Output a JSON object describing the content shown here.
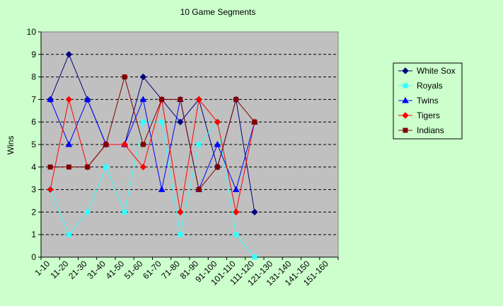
{
  "chart_data": {
    "type": "line",
    "title": "10 Game Segments",
    "xlabel": "",
    "ylabel": "Wins",
    "ylim": [
      0,
      10
    ],
    "yticks": [
      0,
      1,
      2,
      3,
      4,
      5,
      6,
      7,
      8,
      9,
      10
    ],
    "grid": "horizontal dashed",
    "legend_position": "right",
    "categories": [
      "1-10",
      "11-20",
      "21-30",
      "31-40",
      "41-50",
      "51-60",
      "61-70",
      "71-80",
      "81-90",
      "91-100",
      "101-110",
      "111-120",
      "121-130",
      "131-140",
      "141-150",
      "151-160"
    ],
    "series": [
      {
        "name": "White Sox",
        "color": "#000080",
        "marker": "diamond",
        "values": [
          7,
          9,
          7,
          5,
          5,
          8,
          7,
          6,
          7,
          4,
          7,
          2,
          null,
          null,
          null,
          null
        ]
      },
      {
        "name": "Royals",
        "color": "#33FFFF",
        "marker": "square",
        "values": [
          3,
          1,
          2,
          4,
          2,
          6,
          6,
          1,
          5,
          6,
          1,
          0,
          null,
          null,
          null,
          null
        ]
      },
      {
        "name": "Twins",
        "color": "#0000FF",
        "marker": "triangle",
        "values": [
          7,
          5,
          7,
          5,
          5,
          7,
          3,
          7,
          3,
          5,
          3,
          6,
          null,
          null,
          null,
          null
        ]
      },
      {
        "name": "Tigers",
        "color": "#FF0000",
        "marker": "diamond",
        "values": [
          3,
          7,
          4,
          5,
          5,
          4,
          7,
          2,
          7,
          6,
          2,
          6,
          null,
          null,
          null,
          null
        ]
      },
      {
        "name": "Indians",
        "color": "#800000",
        "marker": "square",
        "values": [
          4,
          4,
          4,
          5,
          8,
          5,
          7,
          7,
          3,
          4,
          7,
          6,
          null,
          null,
          null,
          null
        ]
      }
    ]
  }
}
